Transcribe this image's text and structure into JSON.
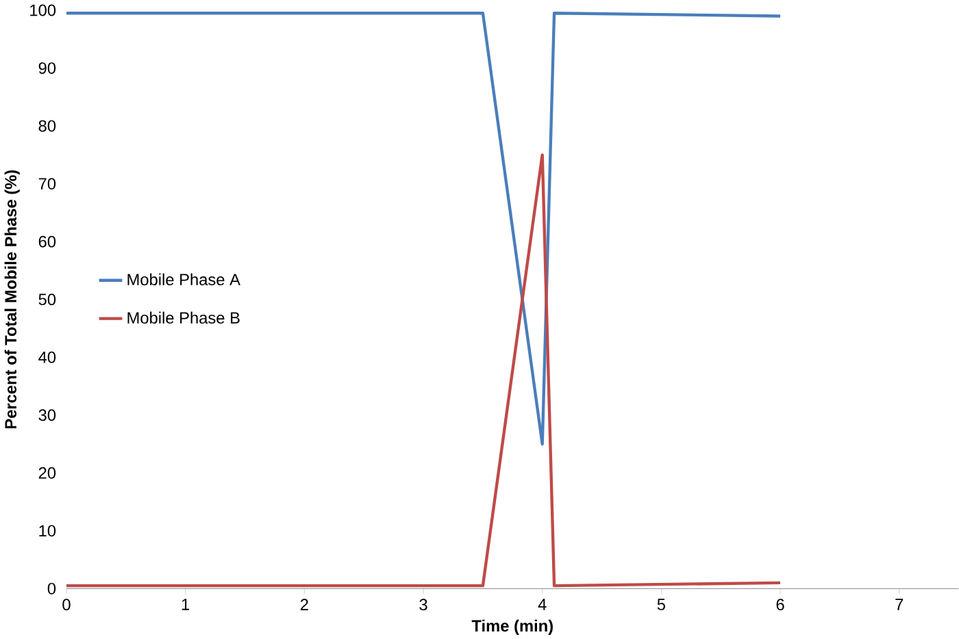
{
  "chart_data": {
    "type": "line",
    "xlabel": "Time (min)",
    "ylabel": "Percent of Total Mobile Phase (%)",
    "xlim": [
      0,
      7.5
    ],
    "xticks": [
      0,
      1,
      2,
      3,
      4,
      5,
      6,
      7
    ],
    "ylim": [
      0,
      100
    ],
    "yticks": [
      0,
      10,
      20,
      30,
      40,
      50,
      60,
      70,
      80,
      90,
      100
    ],
    "grid": false,
    "legend": "left",
    "marker": "none",
    "line_style": "solid",
    "series": [
      {
        "name": "Mobile Phase A",
        "color": "#4a7ebb",
        "x": [
          0,
          3.5,
          4,
          4.1,
          6
        ],
        "values": [
          99.5,
          99.5,
          25,
          99.5,
          99
        ]
      },
      {
        "name": "Mobile Phase B",
        "color": "#be4b48",
        "x": [
          0,
          3.5,
          4,
          4.1,
          6
        ],
        "values": [
          0.5,
          0.5,
          75,
          0.5,
          1
        ]
      }
    ]
  }
}
